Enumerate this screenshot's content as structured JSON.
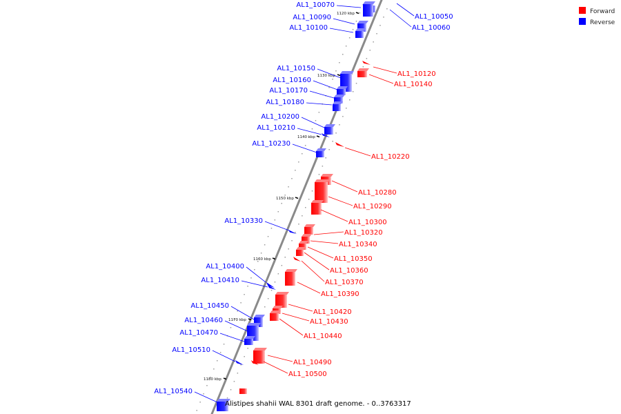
{
  "legend": {
    "forward": {
      "label": "Forward",
      "color": "#ff0000"
    },
    "reverse": {
      "label": "Reverse",
      "color": "#0000ff"
    }
  },
  "caption": "Alistipes shahii WAL 8301 draft genome. - 0..3763317",
  "ticks": [
    {
      "label": "1120 kbp"
    },
    {
      "label": "1130 kbp"
    },
    {
      "label": "1140 kbp"
    },
    {
      "label": "1150 kbp"
    },
    {
      "label": "1160 kbp"
    },
    {
      "label": "1170 kbp"
    },
    {
      "label": "1180 kbp"
    }
  ],
  "genes": [
    {
      "name": "AL1_10050",
      "strand": "reverse"
    },
    {
      "name": "AL1_10060",
      "strand": "reverse"
    },
    {
      "name": "AL1_10070",
      "strand": "reverse"
    },
    {
      "name": "AL1_10090",
      "strand": "reverse"
    },
    {
      "name": "AL1_10100",
      "strand": "reverse"
    },
    {
      "name": "AL1_10120",
      "strand": "forward"
    },
    {
      "name": "AL1_10140",
      "strand": "forward"
    },
    {
      "name": "AL1_10150",
      "strand": "reverse"
    },
    {
      "name": "AL1_10160",
      "strand": "reverse"
    },
    {
      "name": "AL1_10170",
      "strand": "reverse"
    },
    {
      "name": "AL1_10180",
      "strand": "reverse"
    },
    {
      "name": "AL1_10200",
      "strand": "reverse"
    },
    {
      "name": "AL1_10210",
      "strand": "reverse"
    },
    {
      "name": "AL1_10230",
      "strand": "reverse"
    },
    {
      "name": "AL1_10220",
      "strand": "forward"
    },
    {
      "name": "AL1_10280",
      "strand": "forward"
    },
    {
      "name": "AL1_10290",
      "strand": "forward"
    },
    {
      "name": "AL1_10300",
      "strand": "forward"
    },
    {
      "name": "AL1_10320",
      "strand": "forward"
    },
    {
      "name": "AL1_10330",
      "strand": "reverse"
    },
    {
      "name": "AL1_10340",
      "strand": "forward"
    },
    {
      "name": "AL1_10350",
      "strand": "forward"
    },
    {
      "name": "AL1_10360",
      "strand": "forward"
    },
    {
      "name": "AL1_10370",
      "strand": "forward"
    },
    {
      "name": "AL1_10390",
      "strand": "forward"
    },
    {
      "name": "AL1_10400",
      "strand": "reverse"
    },
    {
      "name": "AL1_10410",
      "strand": "reverse"
    },
    {
      "name": "AL1_10420",
      "strand": "forward"
    },
    {
      "name": "AL1_10430",
      "strand": "forward"
    },
    {
      "name": "AL1_10440",
      "strand": "forward"
    },
    {
      "name": "AL1_10450",
      "strand": "reverse"
    },
    {
      "name": "AL1_10460",
      "strand": "reverse"
    },
    {
      "name": "AL1_10470",
      "strand": "reverse"
    },
    {
      "name": "AL1_10490",
      "strand": "forward"
    },
    {
      "name": "AL1_10500",
      "strand": "forward"
    },
    {
      "name": "AL1_10510",
      "strand": "reverse"
    },
    {
      "name": "AL1_10540",
      "strand": "reverse"
    }
  ]
}
